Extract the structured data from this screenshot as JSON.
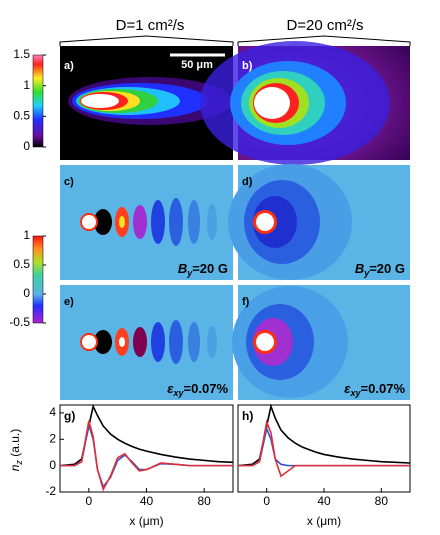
{
  "headers": [
    "D=1 cm²/s",
    "D=20 cm²/s"
  ],
  "scale_bar": "50 μm",
  "panels": [
    "a)",
    "b)",
    "c)",
    "d)",
    "e)",
    "f)"
  ],
  "colorbars": [
    {
      "ticks": [
        0,
        0.5,
        1,
        1.5
      ]
    },
    {
      "ticks": [
        -0.5,
        0,
        0.5,
        1
      ]
    }
  ],
  "annotations": [
    {
      "symbol": "B",
      "sub": "y",
      "text": "=20 G"
    },
    {
      "symbol": "B",
      "sub": "y",
      "text": "=20 G"
    },
    {
      "symbol": "ε",
      "sub": "xy",
      "text": "=0.07%"
    },
    {
      "symbol": "ε",
      "sub": "xy",
      "text": "=0.07%"
    }
  ],
  "y_label": {
    "symbol": "n",
    "sub": "z",
    "text": " (a.u.)"
  },
  "chart_data": [
    {
      "type": "line",
      "label": "g)",
      "x_label": "x (μm)",
      "x": [
        -20,
        -10,
        -5,
        0,
        3,
        6,
        10,
        15,
        20,
        25,
        30,
        35,
        40,
        50,
        60,
        70,
        80,
        90,
        100
      ],
      "xlim": [
        -20,
        100
      ],
      "xticks": [
        0,
        40,
        80
      ],
      "ylim": [
        -2,
        4.6
      ],
      "yticks": [
        -2,
        0,
        2,
        4
      ],
      "series": [
        {
          "color": "#000000",
          "values": [
            0,
            0.1,
            0.5,
            3,
            4.5,
            3.8,
            3.0,
            2.4,
            2.0,
            1.7,
            1.45,
            1.25,
            1.1,
            0.85,
            0.65,
            0.5,
            0.4,
            0.3,
            0.25
          ]
        },
        {
          "color": "#3050d0",
          "values": [
            0,
            0,
            0.3,
            3.1,
            2.0,
            -0.3,
            -1.6,
            -0.9,
            0.4,
            0.8,
            0.3,
            -0.3,
            -0.3,
            0.15,
            0.1,
            0,
            0,
            0,
            0
          ]
        },
        {
          "color": "#e0303a",
          "values": [
            0,
            0,
            0.3,
            3.4,
            2.2,
            -0.3,
            -1.8,
            -0.8,
            0.6,
            0.9,
            0.2,
            -0.4,
            -0.3,
            0.2,
            0.1,
            0,
            0,
            0,
            0
          ]
        }
      ]
    },
    {
      "type": "line",
      "label": "h)",
      "x_label": "x (μm)",
      "x": [
        -20,
        -10,
        -5,
        0,
        3,
        6,
        10,
        15,
        20,
        25,
        30,
        35,
        40,
        50,
        60,
        70,
        80,
        90,
        100
      ],
      "xlim": [
        -20,
        100
      ],
      "xticks": [
        0,
        40,
        80
      ],
      "ylim": [
        -2,
        4.6
      ],
      "series": [
        {
          "color": "#000000",
          "values": [
            0,
            0.1,
            0.5,
            3,
            4.5,
            3.6,
            2.7,
            2.1,
            1.7,
            1.4,
            1.2,
            1.0,
            0.85,
            0.65,
            0.5,
            0.4,
            0.3,
            0.25,
            0.2
          ]
        },
        {
          "color": "#3050d0",
          "values": [
            0,
            0,
            0.3,
            2.8,
            2.0,
            0.5,
            0.1,
            0,
            0,
            0,
            0,
            0,
            0,
            0,
            0,
            0,
            0,
            0,
            0
          ]
        },
        {
          "color": "#e0303a",
          "values": [
            0,
            0,
            0.3,
            3.3,
            2.5,
            0.5,
            -0.8,
            -0.4,
            0,
            0,
            0,
            0,
            0,
            0,
            0,
            0,
            0,
            0,
            0
          ]
        }
      ]
    }
  ]
}
